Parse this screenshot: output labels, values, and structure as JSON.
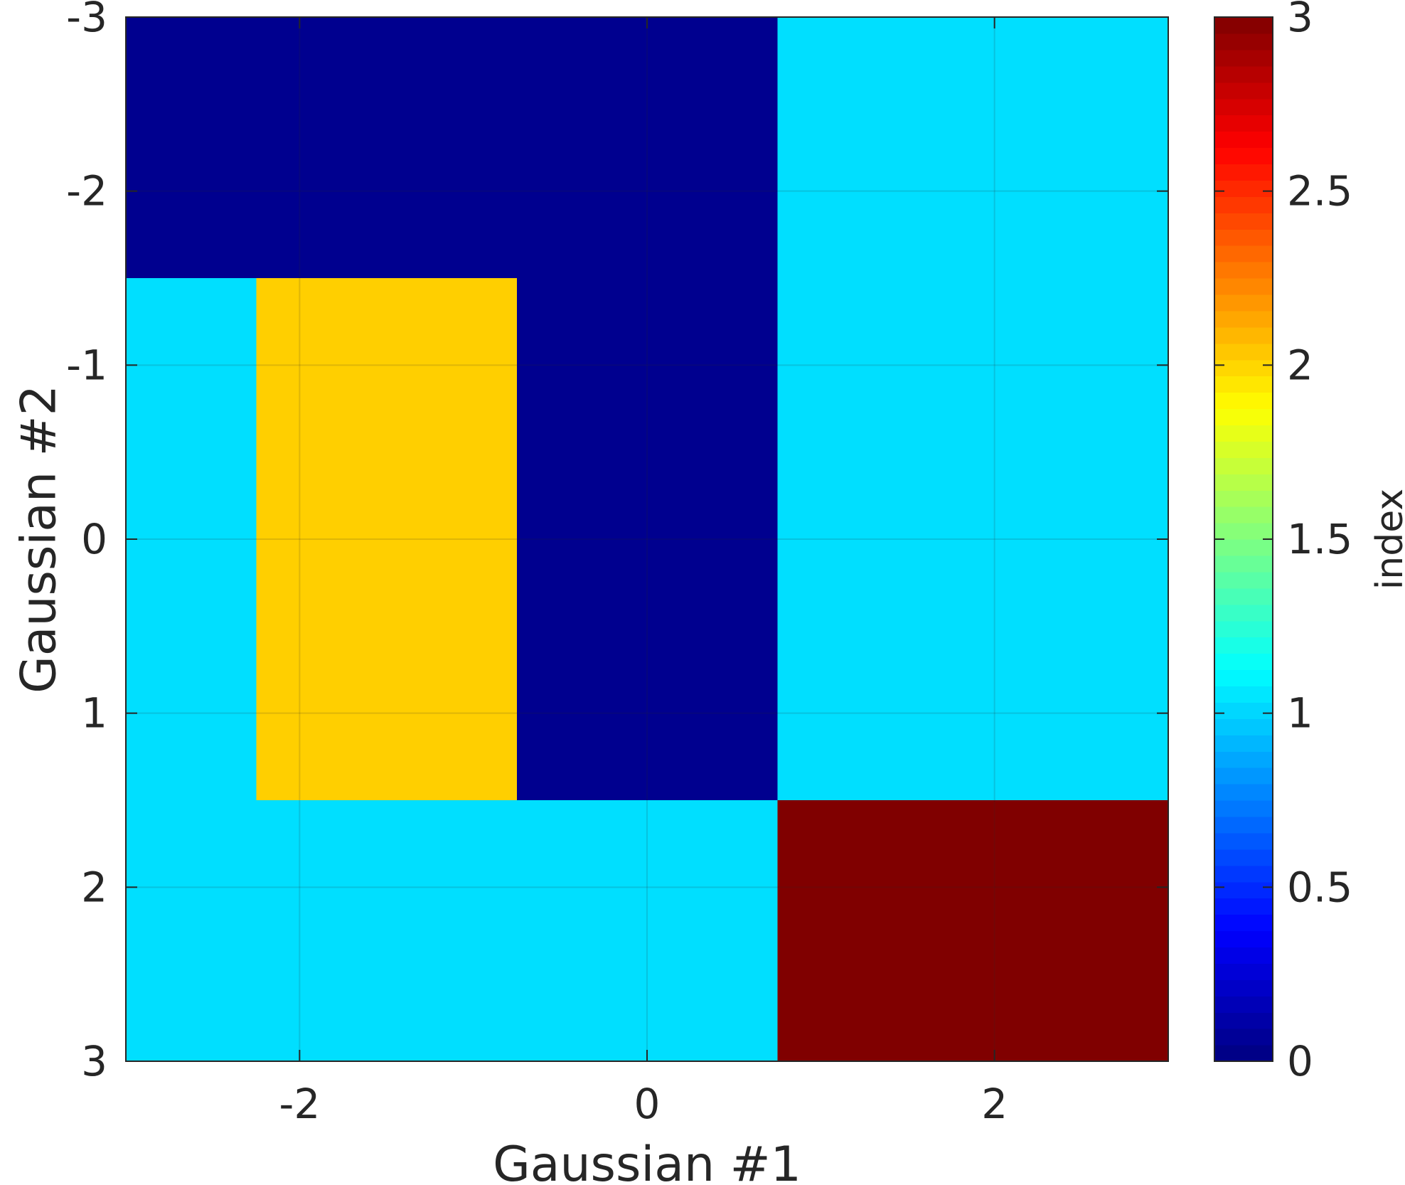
{
  "chart_data": {
    "type": "heatmap",
    "title": "",
    "xlabel": "Gaussian #1",
    "ylabel": "Gaussian #2",
    "xlim": [
      -3,
      3
    ],
    "ylim": [
      -3,
      3
    ],
    "y_direction": "reversed",
    "grid": true,
    "colormap": "jet",
    "colorbar": {
      "label": "index",
      "range": [
        0,
        3
      ],
      "ticks": [
        "0",
        "0.5",
        "1",
        "1.5",
        "2",
        "2.5",
        "3"
      ]
    },
    "x_ticks": [
      "-2",
      "0",
      "2"
    ],
    "y_ticks": [
      "-3",
      "-2",
      "-1",
      "0",
      "1",
      "2",
      "3"
    ],
    "regions": [
      {
        "x": [
          -3,
          0.75
        ],
        "y": [
          -3,
          -1.5
        ],
        "value": 0,
        "color": "#00008f"
      },
      {
        "x": [
          0.75,
          3
        ],
        "y": [
          -3,
          1.5
        ],
        "value": 1.05,
        "color": "#00dfff"
      },
      {
        "x": [
          -3,
          -2.25
        ],
        "y": [
          -1.5,
          1.5
        ],
        "value": 1.05,
        "color": "#00dfff"
      },
      {
        "x": [
          -2.25,
          -0.75
        ],
        "y": [
          -1.5,
          1.5
        ],
        "value": 2.05,
        "color": "#ffcf00"
      },
      {
        "x": [
          -0.75,
          0.75
        ],
        "y": [
          -1.5,
          1.5
        ],
        "value": 0,
        "color": "#00008f"
      },
      {
        "x": [
          -3,
          0.75
        ],
        "y": [
          1.5,
          3
        ],
        "value": 1.05,
        "color": "#00dfff"
      },
      {
        "x": [
          0.75,
          3
        ],
        "y": [
          1.5,
          3
        ],
        "value": 3,
        "color": "#800000"
      }
    ]
  }
}
